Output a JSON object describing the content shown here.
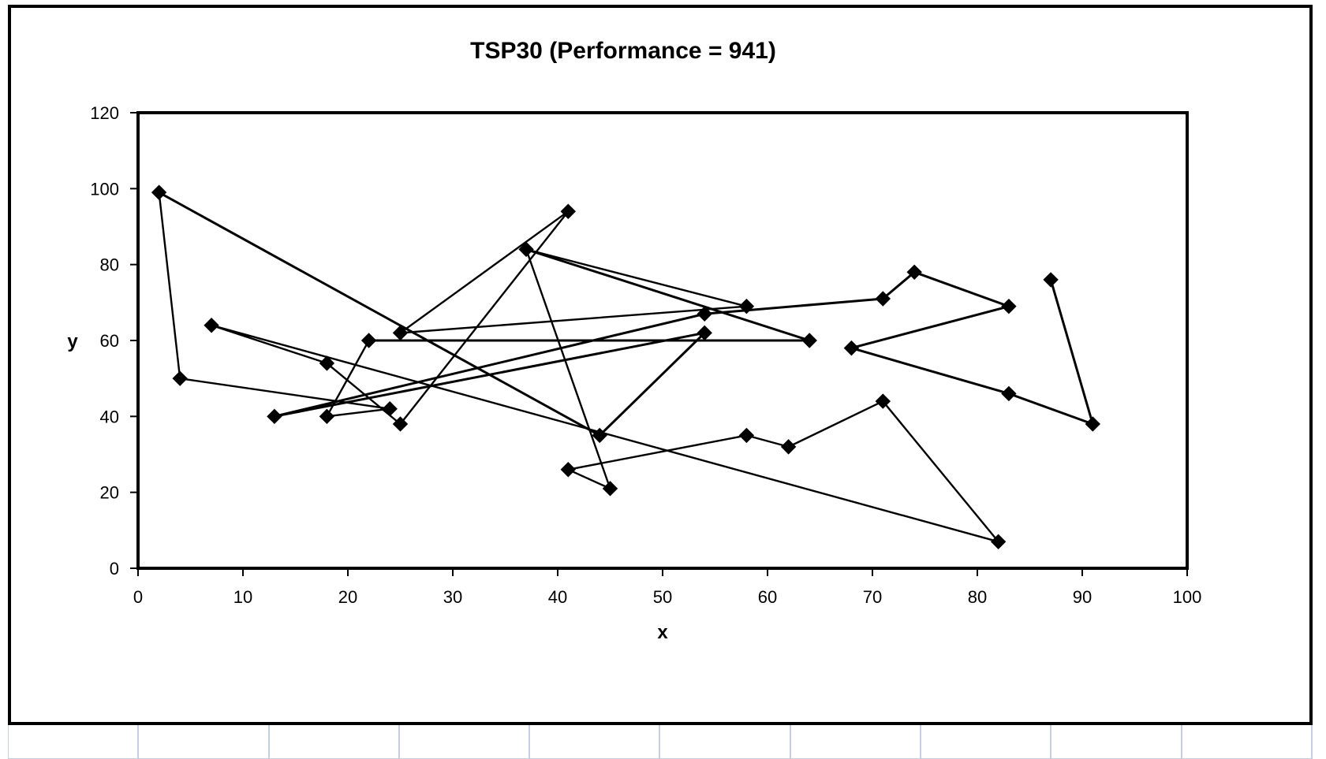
{
  "chart_data": {
    "type": "line",
    "title": "TSP30 (Performance = 941)",
    "xlabel": "x",
    "ylabel": "y",
    "xlim": [
      0,
      100
    ],
    "ylim": [
      0,
      120
    ],
    "x_ticks": [
      0,
      10,
      20,
      30,
      40,
      50,
      60,
      70,
      80,
      90,
      100
    ],
    "y_ticks": [
      0,
      20,
      40,
      60,
      80,
      100,
      120
    ],
    "grid": false,
    "legend": "none",
    "marker": "diamond",
    "line_color": "#000000",
    "tour_points": [
      {
        "x": 41,
        "y": 26
      },
      {
        "x": 58,
        "y": 35
      },
      {
        "x": 62,
        "y": 32
      },
      {
        "x": 71,
        "y": 44
      },
      {
        "x": 82,
        "y": 7
      },
      {
        "x": 7,
        "y": 64
      },
      {
        "x": 18,
        "y": 54
      },
      {
        "x": 25,
        "y": 38
      },
      {
        "x": 41,
        "y": 94
      },
      {
        "x": 25,
        "y": 62
      },
      {
        "x": 58,
        "y": 69
      },
      {
        "x": 37,
        "y": 84
      },
      {
        "x": 45,
        "y": 21
      },
      {
        "x": 41,
        "y": 26
      }
    ],
    "series": [
      {
        "points": [
          {
            "x": 41,
            "y": 26
          },
          {
            "x": 58,
            "y": 35
          },
          {
            "x": 62,
            "y": 32
          },
          {
            "x": 71,
            "y": 44
          },
          {
            "x": 82,
            "y": 7
          },
          {
            "x": 7,
            "y": 64
          },
          {
            "x": 18,
            "y": 54
          },
          {
            "x": 25,
            "y": 38
          },
          {
            "x": 41,
            "y": 94
          },
          {
            "x": 25,
            "y": 62
          },
          {
            "x": 58,
            "y": 69
          },
          {
            "x": 37,
            "y": 84
          },
          {
            "x": 45,
            "y": 21
          },
          {
            "x": 41,
            "y": 26
          }
        ]
      },
      {
        "points": [
          {
            "x": 22,
            "y": 60
          },
          {
            "x": 64,
            "y": 60
          },
          {
            "x": 37,
            "y": 84
          }
        ]
      },
      {
        "points": [
          {
            "x": 2,
            "y": 99
          },
          {
            "x": 4,
            "y": 50
          },
          {
            "x": 24,
            "y": 42
          },
          {
            "x": 18,
            "y": 40
          },
          {
            "x": 22,
            "y": 60
          }
        ]
      },
      {
        "points": [
          {
            "x": 2,
            "y": 99
          },
          {
            "x": 44,
            "y": 35
          },
          {
            "x": 54,
            "y": 62
          },
          {
            "x": 13,
            "y": 40
          },
          {
            "x": 54,
            "y": 67
          },
          {
            "x": 71,
            "y": 71
          },
          {
            "x": 74,
            "y": 78
          },
          {
            "x": 83,
            "y": 69
          },
          {
            "x": 68,
            "y": 58
          },
          {
            "x": 83,
            "y": 46
          },
          {
            "x": 91,
            "y": 38
          },
          {
            "x": 87,
            "y": 76
          }
        ]
      }
    ]
  }
}
